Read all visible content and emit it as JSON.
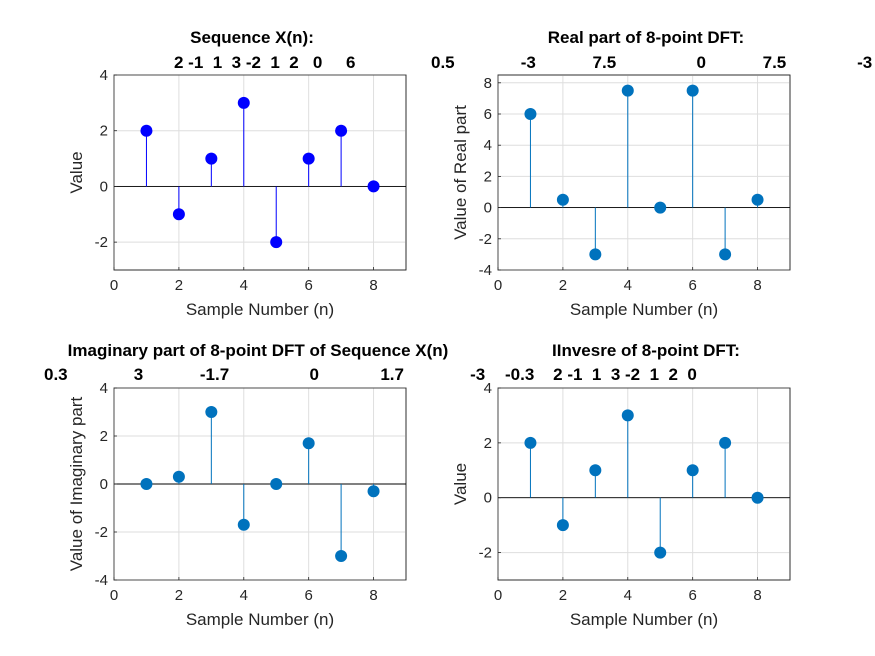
{
  "chart_data": [
    {
      "type": "stem",
      "title": "Sequence X(n):",
      "title_values": "2 -1  1  3 -2  1  2   0     6",
      "xlabel": "Sample Number (n)",
      "ylabel": "Value",
      "xlim": [
        0,
        9
      ],
      "ylim": [
        -3,
        4
      ],
      "xticks": [
        0,
        2,
        4,
        6,
        8
      ],
      "yticks": [
        -2,
        0,
        2,
        4
      ],
      "x": [
        1,
        2,
        3,
        4,
        5,
        6,
        7,
        8
      ],
      "y": [
        2,
        -1,
        1,
        3,
        -2,
        1,
        2,
        0
      ],
      "color": "#0000ff",
      "grid": true
    },
    {
      "type": "stem",
      "title": "Real part of 8-point DFT:",
      "title_values": "0.5              -3            7.5                 0            7.5               -3",
      "xlabel": "Sample Number (n)",
      "ylabel": "Value of Real part",
      "xlim": [
        0,
        9
      ],
      "ylim": [
        -4,
        8.5
      ],
      "xticks": [
        0,
        2,
        4,
        6,
        8
      ],
      "yticks": [
        -4,
        -2,
        0,
        2,
        4,
        6,
        8
      ],
      "x": [
        1,
        2,
        3,
        4,
        5,
        6,
        7,
        8
      ],
      "y": [
        6,
        0.5,
        -3,
        7.5,
        0,
        7.5,
        -3,
        0.5
      ],
      "color": "#0072bd",
      "grid": true
    },
    {
      "type": "stem",
      "title": "Imaginary part of 8-point DFT of Sequence X(n)",
      "title_values": "0.3              3            -1.7                 0             1.7              -3",
      "xlabel": "Sample Number (n)",
      "ylabel": "Value of Imaginary part",
      "xlim": [
        0,
        9
      ],
      "ylim": [
        -4,
        4
      ],
      "xticks": [
        0,
        2,
        4,
        6,
        8
      ],
      "yticks": [
        -4,
        -2,
        0,
        2,
        4
      ],
      "x": [
        1,
        2,
        3,
        4,
        5,
        6,
        7,
        8
      ],
      "y": [
        0,
        0.3,
        3,
        -1.7,
        0,
        1.7,
        -3,
        -0.3
      ],
      "color": "#0072bd",
      "grid": true
    },
    {
      "type": "stem",
      "title": "IInvesre of 8-point DFT:",
      "title_values": "-0.3    2 -1  1  3 -2  1  2  0",
      "xlabel": "Sample Number (n)",
      "ylabel": "Value",
      "xlim": [
        0,
        9
      ],
      "ylim": [
        -3,
        4
      ],
      "xticks": [
        0,
        2,
        4,
        6,
        8
      ],
      "yticks": [
        -2,
        0,
        2,
        4
      ],
      "x": [
        1,
        2,
        3,
        4,
        5,
        6,
        7,
        8
      ],
      "y": [
        2,
        -1,
        1,
        3,
        -2,
        1,
        2,
        0
      ],
      "color": "#0072bd",
      "grid": true
    }
  ]
}
